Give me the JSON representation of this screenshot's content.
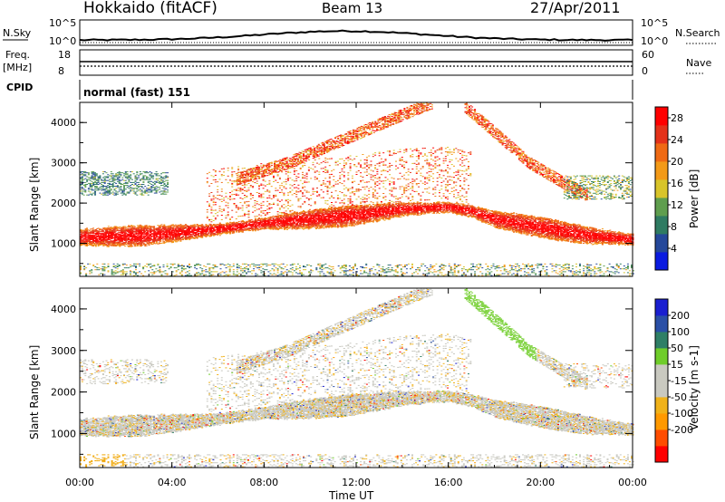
{
  "header": {
    "station": "Hokkaido (fitACF)",
    "beam": "Beam 13",
    "date": "27/Apr/2011"
  },
  "status_panels": {
    "nsky_label": "N.Sky",
    "nsky_ticks": [
      "10^5",
      "10^0"
    ],
    "nsearch_label": "N.Search",
    "nsearch_ticks": [
      "10^5",
      "10^0"
    ],
    "freq_label": "Freq.",
    "freq_unit": "[MHz]",
    "freq_ticks": [
      "18",
      "8"
    ],
    "nave_label": "Nave",
    "nave_ticks": [
      "60",
      "0"
    ],
    "cpid_label": "CPID",
    "cpid_value": "normal (fast) 151"
  },
  "colors": {
    "power_scale": [
      "#0a1be0",
      "#25489a",
      "#2f7b62",
      "#5f9e4e",
      "#d8c42a",
      "#f39a18",
      "#ef6a14",
      "#e4321a",
      "#ff0000"
    ],
    "velocity_scale": [
      "#ff0000",
      "#ff4d00",
      "#ff9900",
      "#f0b21a",
      "#c9c9c0",
      "#c9c9c0",
      "#6fcd2a",
      "#2f7f66",
      "#2a4fa6",
      "#1a1fd0"
    ],
    "velocity_main": "#c8c8c0",
    "velocity_green": "#7bd13a"
  },
  "chart_data": [
    {
      "type": "heatmap",
      "name": "power-panel",
      "title": "",
      "xlabel": "Time UT",
      "ylabel": "Slant Range [km]",
      "xlim": [
        0,
        24
      ],
      "ylim": [
        180,
        4500
      ],
      "x_tick_labels": [
        "00:00",
        "04:00",
        "08:00",
        "12:00",
        "16:00",
        "20:00",
        "00:00"
      ],
      "x_ticks": [
        0,
        4,
        8,
        12,
        16,
        20,
        24
      ],
      "y_ticks": [
        1000,
        2000,
        3000,
        4000
      ],
      "colorbar": {
        "label": "Power [dB]",
        "ticks": [
          4,
          8,
          12,
          16,
          20,
          24,
          28
        ],
        "range": [
          0,
          30
        ]
      },
      "main_band": [
        [
          0,
          1150
        ],
        [
          3,
          1200
        ],
        [
          6,
          1350
        ],
        [
          8,
          1500
        ],
        [
          10,
          1600
        ],
        [
          12,
          1700
        ],
        [
          14,
          1850
        ],
        [
          16,
          1900
        ],
        [
          17,
          1800
        ],
        [
          18,
          1600
        ],
        [
          20,
          1400
        ],
        [
          22,
          1200
        ],
        [
          24,
          1100
        ]
      ],
      "far_arcs": [
        [
          [
            6.8,
            2600
          ],
          [
            9,
            3000
          ],
          [
            11.5,
            3600
          ],
          [
            14,
            4200
          ],
          [
            15.3,
            4500
          ]
        ],
        [
          [
            16.7,
            4400
          ],
          [
            17.5,
            4000
          ],
          [
            18.5,
            3500
          ],
          [
            19.5,
            3000
          ],
          [
            21,
            2500
          ],
          [
            22,
            2200
          ]
        ]
      ]
    },
    {
      "type": "heatmap",
      "name": "velocity-panel",
      "title": "",
      "xlabel": "Time UT",
      "ylabel": "Slant Range [km]",
      "xlim": [
        0,
        24
      ],
      "ylim": [
        180,
        4500
      ],
      "x_tick_labels": [
        "00:00",
        "04:00",
        "08:00",
        "12:00",
        "16:00",
        "20:00",
        "00:00"
      ],
      "x_ticks": [
        0,
        4,
        8,
        12,
        16,
        20,
        24
      ],
      "y_ticks": [
        1000,
        2000,
        3000,
        4000
      ],
      "colorbar": {
        "label": "Velocity [m s-1]",
        "tick_labels": [
          "200",
          "100",
          "50",
          "15",
          "-15",
          "-50",
          "-100",
          "-200"
        ],
        "range": [
          -250,
          250
        ]
      }
    }
  ]
}
